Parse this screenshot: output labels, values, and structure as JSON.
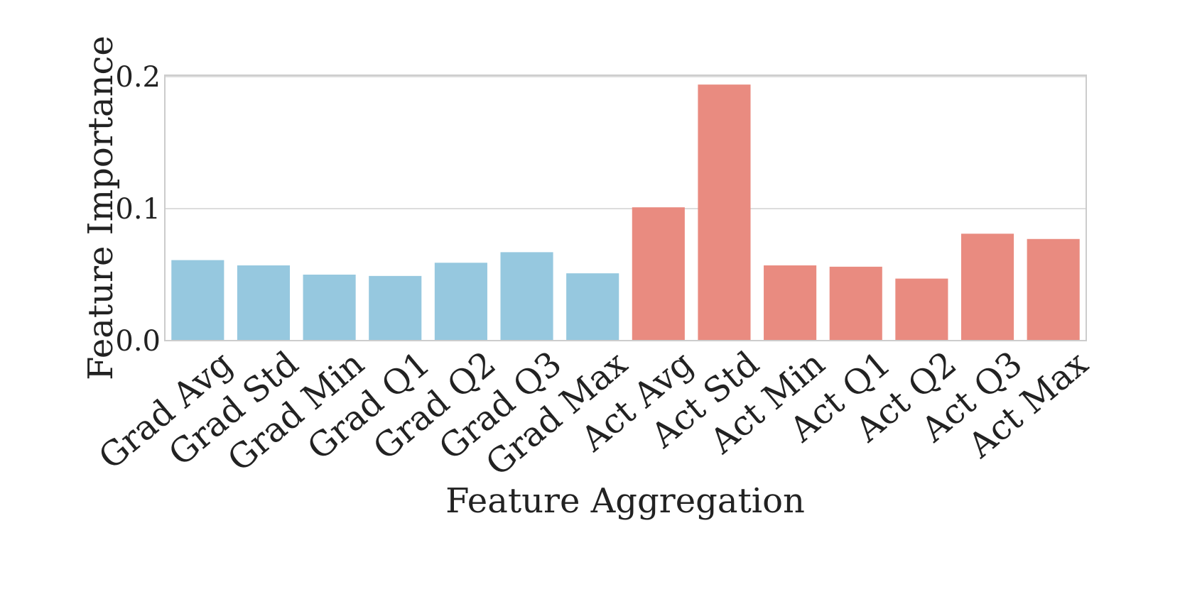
{
  "chart_data": {
    "type": "bar",
    "title": "",
    "xlabel": "Feature Aggregation",
    "ylabel": "Feature Importance",
    "ylim": [
      0,
      0.2
    ],
    "yticks": [
      0.0,
      0.1,
      0.2
    ],
    "ytick_labels": [
      "0.0",
      "0.1",
      "0.2"
    ],
    "grid": true,
    "categories": [
      "Grad Avg",
      "Grad Std",
      "Grad Min",
      "Grad Q1",
      "Grad Q2",
      "Grad Q3",
      "Grad Max",
      "Act Avg",
      "Act Std",
      "Act Min",
      "Act Q1",
      "Act Q2",
      "Act Q3",
      "Act Max"
    ],
    "values": [
      0.061,
      0.057,
      0.05,
      0.049,
      0.059,
      0.067,
      0.051,
      0.101,
      0.194,
      0.057,
      0.056,
      0.047,
      0.081,
      0.077
    ],
    "bar_colors": [
      "#96c8df",
      "#96c8df",
      "#96c8df",
      "#96c8df",
      "#96c8df",
      "#96c8df",
      "#96c8df",
      "#e98b80",
      "#e98b80",
      "#e98b80",
      "#e98b80",
      "#e98b80",
      "#e98b80",
      "#e98b80"
    ]
  }
}
